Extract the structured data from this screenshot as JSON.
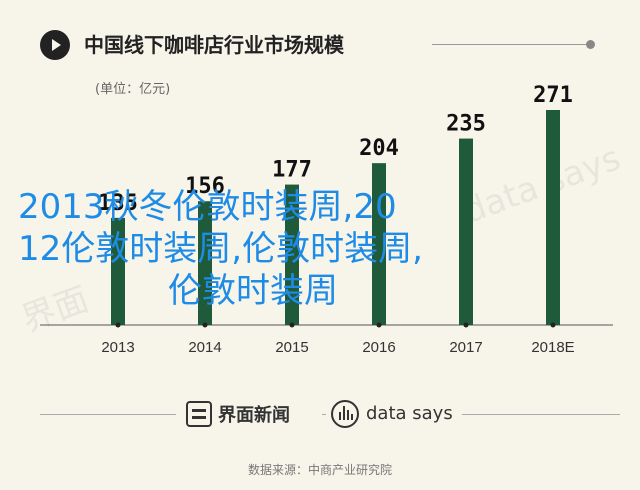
{
  "title": "中国线下咖啡店行业市场规模",
  "unit_label": "(单位：亿元)",
  "chart_data": {
    "type": "bar",
    "categories": [
      "2013",
      "2014",
      "2015",
      "2016",
      "2017",
      "2018E"
    ],
    "values": [
      135,
      156,
      177,
      204,
      235,
      271
    ],
    "ylim": [
      0,
      271
    ],
    "bar_color": "#1f5a3a",
    "grid": false
  },
  "footer": {
    "brand_left": "界面新闻",
    "brand_right": "data says",
    "source": "数据来源：中商产业研究院"
  },
  "watermarks": {
    "left": "界面",
    "right": "data says"
  },
  "overlay_text": {
    "line1": "2013秋冬伦敦时装周,20",
    "line2": "12伦敦时装周,伦敦时装周,",
    "line3": "伦敦时装周"
  },
  "colors": {
    "background": "#f7f4ea",
    "overlay_text": "#1e8ce6"
  }
}
